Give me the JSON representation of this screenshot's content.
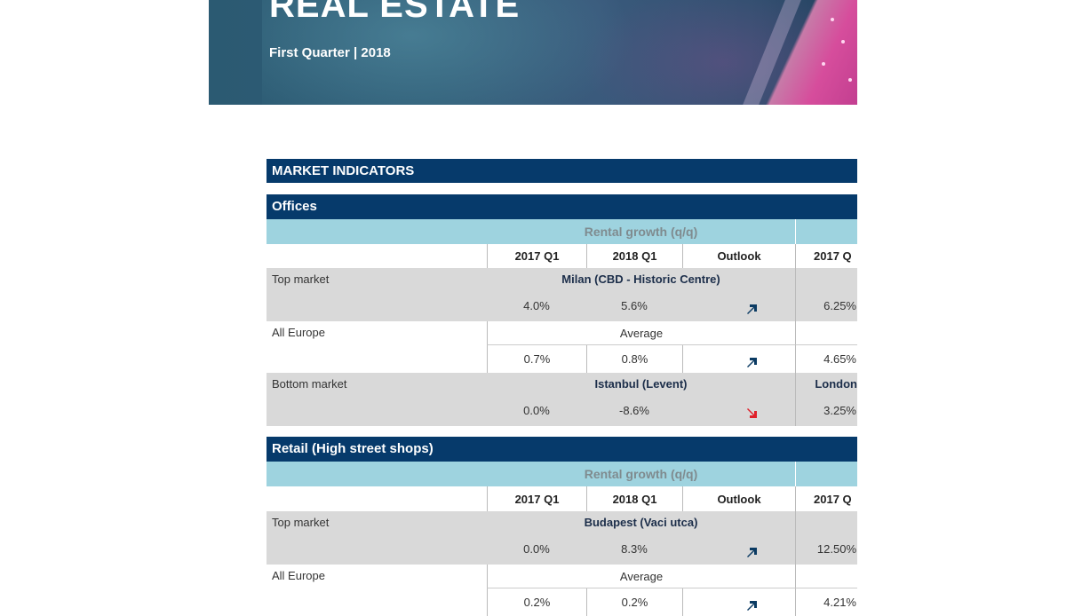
{
  "banner": {
    "title": "REAL ESTATE",
    "subtitle": "First Quarter | 2018"
  },
  "market_indicators_label": "MARKET INDICATORS",
  "colors": {
    "navy": "#063a6b",
    "light_blue": "#9ed3df",
    "arrow_up": "#0b3b63",
    "arrow_down": "#e0202a"
  },
  "offices": {
    "title": "Offices",
    "group_header": "Rental growth (q/q)",
    "columns": [
      "2017 Q1",
      "2018 Q1",
      "Outlook",
      "2017 Q"
    ],
    "rows": [
      {
        "label": "Top market",
        "market": "Milan (CBD - Historic Centre)",
        "v2017": "4.0%",
        "v2018": "5.6%",
        "outlook": "up-arrow-icon",
        "extra_market": "",
        "extra_value": "6.25%"
      },
      {
        "label": "All Europe",
        "market": "Average",
        "v2017": "0.7%",
        "v2018": "0.8%",
        "outlook": "up-arrow-icon",
        "extra_market": "",
        "extra_value": "4.65%"
      },
      {
        "label": "Bottom market",
        "market": "Istanbul (Levent)",
        "v2017": "0.0%",
        "v2018": "-8.6%",
        "outlook": "down-arrow-icon",
        "extra_market": "London",
        "extra_value": "3.25%"
      }
    ]
  },
  "retail": {
    "title": "Retail (High street shops)",
    "group_header": "Rental growth (q/q)",
    "columns": [
      "2017 Q1",
      "2018 Q1",
      "Outlook",
      "2017 Q"
    ],
    "rows": [
      {
        "label": "Top market",
        "market": "Budapest (Vaci utca)",
        "v2017": "0.0%",
        "v2018": "8.3%",
        "outlook": "up-arrow-icon",
        "extra_value": "12.50%"
      },
      {
        "label": "All Europe",
        "market": "Average",
        "v2017": "0.2%",
        "v2018": "0.2%",
        "outlook": "up-arrow-icon",
        "extra_value": "4.21%"
      }
    ]
  }
}
